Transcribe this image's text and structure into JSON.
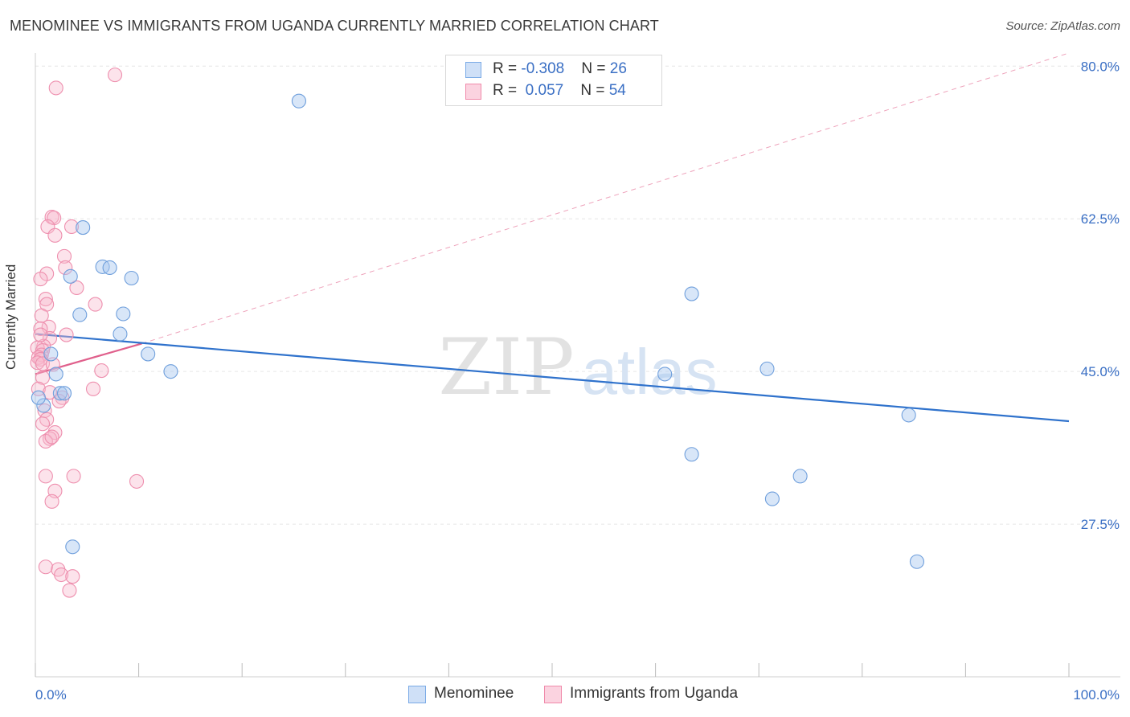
{
  "header": {
    "title": "MENOMINEE VS IMMIGRANTS FROM UGANDA CURRENTLY MARRIED CORRELATION CHART",
    "source": "Source: ZipAtlas.com"
  },
  "watermark": {
    "zip": "ZIP",
    "atlas": "atlas"
  },
  "legend": {
    "rows": [
      {
        "r_label": "R = ",
        "r_value": "-0.308",
        "n_label": "N = ",
        "n_value": "26",
        "color": "#a9c8ef"
      },
      {
        "r_label": "R = ",
        "r_value": " 0.057",
        "n_label": "N = ",
        "n_value": "54",
        "color": "#f7b8cc"
      }
    ]
  },
  "bottom_legend": [
    {
      "label": "Menominee",
      "color": "#a9c8ef"
    },
    {
      "label": "Immigrants from Uganda",
      "color": "#f7b8cc"
    }
  ],
  "chart_data": {
    "type": "scatter",
    "title": "MENOMINEE VS IMMIGRANTS FROM UGANDA CURRENTLY MARRIED CORRELATION CHART",
    "xlabel": "",
    "ylabel": "Currently Married",
    "xlim": [
      0,
      100
    ],
    "ylim": [
      10,
      81.5
    ],
    "x_tick_labels": [
      "0.0%",
      "100.0%"
    ],
    "y_ticks": [
      27.5,
      45.0,
      62.5,
      80.0
    ],
    "y_tick_labels": [
      "27.5%",
      "45.0%",
      "62.5%",
      "80.0%"
    ],
    "grid": true,
    "legend_position": "top-center",
    "series": [
      {
        "name": "Menominee",
        "color": "#7aaae6",
        "points": [
          [
            25.5,
            76.0
          ],
          [
            4.6,
            61.5
          ],
          [
            6.5,
            57.0
          ],
          [
            7.2,
            56.9
          ],
          [
            9.3,
            55.7
          ],
          [
            3.4,
            55.9
          ],
          [
            4.3,
            51.5
          ],
          [
            8.5,
            51.6
          ],
          [
            8.2,
            49.3
          ],
          [
            10.9,
            47.0
          ],
          [
            1.5,
            47.0
          ],
          [
            2.0,
            44.7
          ],
          [
            13.1,
            45.0
          ],
          [
            2.4,
            42.5
          ],
          [
            2.8,
            42.5
          ],
          [
            0.8,
            41.1
          ],
          [
            0.3,
            42.0
          ],
          [
            63.5,
            53.9
          ],
          [
            63.5,
            35.5
          ],
          [
            60.9,
            44.7
          ],
          [
            70.8,
            45.3
          ],
          [
            84.5,
            40.0
          ],
          [
            74.0,
            33.0
          ],
          [
            71.3,
            30.4
          ],
          [
            3.6,
            24.9
          ],
          [
            85.3,
            23.2
          ]
        ],
        "trend": {
          "x": [
            0,
            100
          ],
          "y": [
            49.3,
            39.3
          ]
        }
      },
      {
        "name": "Immigrants from Uganda",
        "color": "#f08aaa",
        "points": [
          [
            7.7,
            79.0
          ],
          [
            2.0,
            77.5
          ],
          [
            1.6,
            62.7
          ],
          [
            1.8,
            62.6
          ],
          [
            1.2,
            61.6
          ],
          [
            3.5,
            61.6
          ],
          [
            1.9,
            60.6
          ],
          [
            2.8,
            58.2
          ],
          [
            2.9,
            56.9
          ],
          [
            1.1,
            56.2
          ],
          [
            0.5,
            55.6
          ],
          [
            4.0,
            54.6
          ],
          [
            1.0,
            53.3
          ],
          [
            5.8,
            52.7
          ],
          [
            1.1,
            52.7
          ],
          [
            0.6,
            51.4
          ],
          [
            1.3,
            50.1
          ],
          [
            0.5,
            49.9
          ],
          [
            3.0,
            49.2
          ],
          [
            1.4,
            48.8
          ],
          [
            0.8,
            47.9
          ],
          [
            0.2,
            47.7
          ],
          [
            0.7,
            47.4
          ],
          [
            0.6,
            46.9
          ],
          [
            0.3,
            46.6
          ],
          [
            0.5,
            46.4
          ],
          [
            0.2,
            46.0
          ],
          [
            0.7,
            45.9
          ],
          [
            1.7,
            45.8
          ],
          [
            6.4,
            45.1
          ],
          [
            0.7,
            44.3
          ],
          [
            0.3,
            43.0
          ],
          [
            1.4,
            42.6
          ],
          [
            5.6,
            43.0
          ],
          [
            2.6,
            42.0
          ],
          [
            2.3,
            41.6
          ],
          [
            0.9,
            40.5
          ],
          [
            1.1,
            39.5
          ],
          [
            0.7,
            39.0
          ],
          [
            1.9,
            38.0
          ],
          [
            1.4,
            37.3
          ],
          [
            1.0,
            37.0
          ],
          [
            1.6,
            37.5
          ],
          [
            1.0,
            33.0
          ],
          [
            3.7,
            33.0
          ],
          [
            9.8,
            32.4
          ],
          [
            1.9,
            31.3
          ],
          [
            1.6,
            30.1
          ],
          [
            1.0,
            22.6
          ],
          [
            2.2,
            22.3
          ],
          [
            2.5,
            21.7
          ],
          [
            3.6,
            21.5
          ],
          [
            3.3,
            19.9
          ],
          [
            0.5,
            49.2
          ]
        ],
        "trend": {
          "x": [
            0,
            10.3
          ],
          "y": [
            44.7,
            48.2
          ]
        },
        "trend_extension": {
          "x": [
            10.3,
            100
          ],
          "y": [
            48.2,
            81.5
          ]
        }
      }
    ]
  }
}
